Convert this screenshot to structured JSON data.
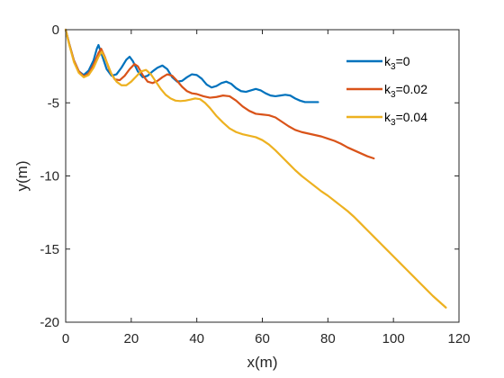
{
  "chart_data": {
    "type": "line",
    "title": "",
    "xlabel": "x(m)",
    "ylabel": "y(m)",
    "xlim": [
      0,
      120
    ],
    "ylim": [
      -20,
      0
    ],
    "xticks": [
      0,
      20,
      40,
      60,
      80,
      100,
      120
    ],
    "yticks": [
      0,
      -5,
      -10,
      -15,
      -20
    ],
    "grid": false,
    "legend_position": "top-right",
    "series": [
      {
        "name": "k3=0",
        "legend_base": "k",
        "legend_sub": "3",
        "legend_value": "=0",
        "color": "#0072BD",
        "points": [
          [
            0,
            0
          ],
          [
            1,
            -0.9
          ],
          [
            2.5,
            -2.1
          ],
          [
            4,
            -2.85
          ],
          [
            5.5,
            -3.1
          ],
          [
            7,
            -2.8
          ],
          [
            8.5,
            -2.1
          ],
          [
            9.5,
            -1.3
          ],
          [
            10,
            -1.05
          ],
          [
            11,
            -1.7
          ],
          [
            12.5,
            -2.7
          ],
          [
            14,
            -3.15
          ],
          [
            15.5,
            -3.05
          ],
          [
            17,
            -2.6
          ],
          [
            18.5,
            -2.05
          ],
          [
            19.5,
            -1.85
          ],
          [
            20.5,
            -2.15
          ],
          [
            22,
            -2.85
          ],
          [
            23.5,
            -3.25
          ],
          [
            25,
            -3.15
          ],
          [
            26.5,
            -2.85
          ],
          [
            28,
            -2.6
          ],
          [
            29.5,
            -2.45
          ],
          [
            31,
            -2.7
          ],
          [
            32.5,
            -3.25
          ],
          [
            34,
            -3.55
          ],
          [
            35.5,
            -3.5
          ],
          [
            37,
            -3.25
          ],
          [
            38.5,
            -3.05
          ],
          [
            40,
            -3.1
          ],
          [
            41.5,
            -3.35
          ],
          [
            43,
            -3.75
          ],
          [
            44.5,
            -3.95
          ],
          [
            46,
            -3.85
          ],
          [
            47.5,
            -3.65
          ],
          [
            49,
            -3.55
          ],
          [
            50.5,
            -3.7
          ],
          [
            52,
            -4.0
          ],
          [
            53.5,
            -4.2
          ],
          [
            55,
            -4.25
          ],
          [
            56.5,
            -4.15
          ],
          [
            58,
            -4.05
          ],
          [
            59.5,
            -4.15
          ],
          [
            61,
            -4.35
          ],
          [
            62.5,
            -4.5
          ],
          [
            64,
            -4.55
          ],
          [
            65.5,
            -4.5
          ],
          [
            67,
            -4.45
          ],
          [
            68.5,
            -4.5
          ],
          [
            70,
            -4.7
          ],
          [
            71.5,
            -4.85
          ],
          [
            73,
            -4.95
          ],
          [
            74.5,
            -4.95
          ],
          [
            76,
            -4.95
          ],
          [
            77,
            -4.95
          ]
        ]
      },
      {
        "name": "k3=0.02",
        "legend_base": "k",
        "legend_sub": "3",
        "legend_value": "=0.02",
        "color": "#D95319",
        "points": [
          [
            0,
            0
          ],
          [
            1,
            -0.9
          ],
          [
            2.5,
            -2.1
          ],
          [
            4,
            -2.85
          ],
          [
            5.5,
            -3.2
          ],
          [
            7,
            -3.0
          ],
          [
            8.5,
            -2.4
          ],
          [
            10,
            -1.6
          ],
          [
            10.8,
            -1.3
          ],
          [
            12,
            -1.9
          ],
          [
            13.5,
            -2.85
          ],
          [
            15,
            -3.4
          ],
          [
            16.5,
            -3.45
          ],
          [
            18,
            -3.15
          ],
          [
            19.5,
            -2.7
          ],
          [
            21,
            -2.35
          ],
          [
            22,
            -2.5
          ],
          [
            23.5,
            -3.1
          ],
          [
            25,
            -3.55
          ],
          [
            26.5,
            -3.65
          ],
          [
            28,
            -3.5
          ],
          [
            29.5,
            -3.25
          ],
          [
            31,
            -3.05
          ],
          [
            32.5,
            -3.15
          ],
          [
            34,
            -3.5
          ],
          [
            35.5,
            -3.9
          ],
          [
            37,
            -4.2
          ],
          [
            38.5,
            -4.35
          ],
          [
            40,
            -4.4
          ],
          [
            42,
            -4.55
          ],
          [
            44,
            -4.65
          ],
          [
            46,
            -4.6
          ],
          [
            48,
            -4.5
          ],
          [
            50,
            -4.55
          ],
          [
            52,
            -4.85
          ],
          [
            54,
            -5.25
          ],
          [
            56,
            -5.55
          ],
          [
            58,
            -5.75
          ],
          [
            60,
            -5.8
          ],
          [
            62,
            -5.85
          ],
          [
            64,
            -6.0
          ],
          [
            66,
            -6.3
          ],
          [
            68,
            -6.6
          ],
          [
            70,
            -6.85
          ],
          [
            72,
            -7.0
          ],
          [
            74,
            -7.1
          ],
          [
            76,
            -7.2
          ],
          [
            78,
            -7.3
          ],
          [
            80,
            -7.45
          ],
          [
            82,
            -7.6
          ],
          [
            84,
            -7.8
          ],
          [
            86,
            -8.05
          ],
          [
            88,
            -8.25
          ],
          [
            90,
            -8.45
          ],
          [
            92,
            -8.65
          ],
          [
            94,
            -8.8
          ]
        ]
      },
      {
        "name": "k3=0.04",
        "legend_base": "k",
        "legend_sub": "3",
        "legend_value": "=0.04",
        "color": "#EDB120",
        "points": [
          [
            0,
            0
          ],
          [
            1,
            -0.95
          ],
          [
            2.5,
            -2.2
          ],
          [
            4,
            -2.95
          ],
          [
            5.5,
            -3.25
          ],
          [
            7,
            -3.1
          ],
          [
            8.5,
            -2.6
          ],
          [
            10,
            -1.85
          ],
          [
            11,
            -1.5
          ],
          [
            12.5,
            -2.2
          ],
          [
            14,
            -3.05
          ],
          [
            15.5,
            -3.55
          ],
          [
            17,
            -3.8
          ],
          [
            18.5,
            -3.8
          ],
          [
            20,
            -3.55
          ],
          [
            21.5,
            -3.2
          ],
          [
            23,
            -2.85
          ],
          [
            24.5,
            -2.75
          ],
          [
            26,
            -3.05
          ],
          [
            27.5,
            -3.55
          ],
          [
            29,
            -4.05
          ],
          [
            30.5,
            -4.45
          ],
          [
            32,
            -4.7
          ],
          [
            33.5,
            -4.85
          ],
          [
            35,
            -4.88
          ],
          [
            36.5,
            -4.85
          ],
          [
            38,
            -4.78
          ],
          [
            39.5,
            -4.7
          ],
          [
            41,
            -4.75
          ],
          [
            42.5,
            -5.0
          ],
          [
            44,
            -5.35
          ],
          [
            46,
            -5.9
          ],
          [
            48,
            -6.35
          ],
          [
            50,
            -6.75
          ],
          [
            52,
            -7.0
          ],
          [
            54,
            -7.15
          ],
          [
            56,
            -7.25
          ],
          [
            58,
            -7.35
          ],
          [
            60,
            -7.55
          ],
          [
            62,
            -7.85
          ],
          [
            64,
            -8.25
          ],
          [
            66,
            -8.7
          ],
          [
            68,
            -9.15
          ],
          [
            70,
            -9.6
          ],
          [
            72,
            -10.0
          ],
          [
            74,
            -10.35
          ],
          [
            76,
            -10.7
          ],
          [
            78,
            -11.05
          ],
          [
            80,
            -11.35
          ],
          [
            82,
            -11.7
          ],
          [
            84,
            -12.05
          ],
          [
            86,
            -12.4
          ],
          [
            88,
            -12.8
          ],
          [
            90,
            -13.25
          ],
          [
            92,
            -13.7
          ],
          [
            94,
            -14.15
          ],
          [
            96,
            -14.6
          ],
          [
            98,
            -15.05
          ],
          [
            100,
            -15.5
          ],
          [
            102,
            -15.95
          ],
          [
            104,
            -16.4
          ],
          [
            106,
            -16.85
          ],
          [
            108,
            -17.3
          ],
          [
            110,
            -17.75
          ],
          [
            112,
            -18.2
          ],
          [
            114,
            -18.6
          ],
          [
            116,
            -19.0
          ]
        ]
      }
    ]
  }
}
